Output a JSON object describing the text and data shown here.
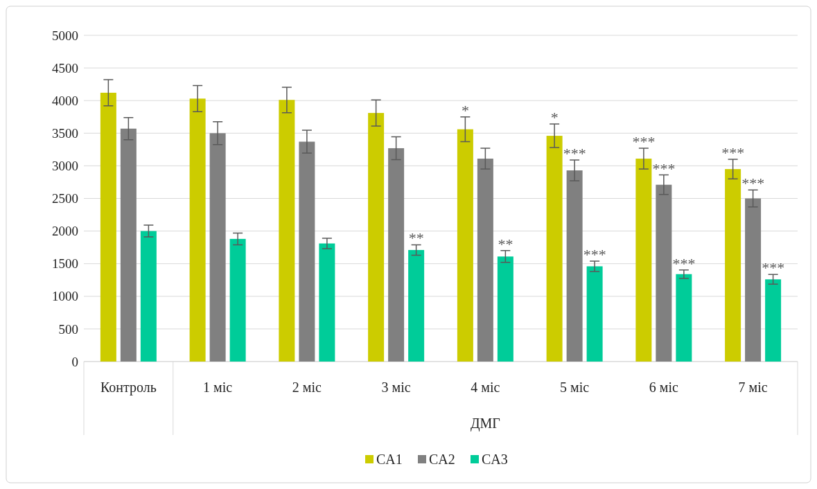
{
  "chart_data": {
    "type": "bar",
    "categories": [
      "Контроль",
      "1 міс",
      "2 міс",
      "3 міс",
      "4 міс",
      "5 міс",
      "6 міс",
      "7 міс"
    ],
    "series": [
      {
        "name": "CA1",
        "color": "#cccc00",
        "values": [
          4120,
          4030,
          4010,
          3810,
          3560,
          3460,
          3110,
          2950
        ],
        "errors": [
          200,
          200,
          195,
          200,
          190,
          180,
          160,
          150
        ]
      },
      {
        "name": "CA2",
        "color": "#808080",
        "values": [
          3570,
          3500,
          3370,
          3270,
          3110,
          2930,
          2710,
          2500
        ],
        "errors": [
          170,
          175,
          175,
          175,
          160,
          160,
          150,
          130
        ]
      },
      {
        "name": "CA3",
        "color": "#00cc99",
        "values": [
          2000,
          1880,
          1810,
          1710,
          1610,
          1460,
          1340,
          1260
        ],
        "errors": [
          90,
          90,
          80,
          80,
          90,
          80,
          65,
          75
        ]
      }
    ],
    "ylim": [
      0,
      5000
    ],
    "yticks": [
      0,
      500,
      1000,
      1500,
      2000,
      2500,
      3000,
      3500,
      4000,
      4500,
      5000
    ],
    "grid": "y",
    "legend": "bottom",
    "annotations": [
      "**",
      "*",
      "**",
      "*",
      "***",
      "***",
      "***",
      "***",
      "***",
      "***",
      "***",
      "***",
      "ДМГ"
    ]
  }
}
